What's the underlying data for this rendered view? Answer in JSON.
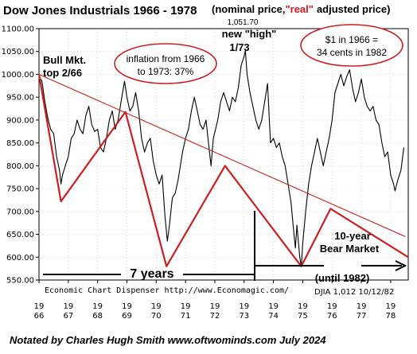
{
  "chart_data": {
    "type": "line",
    "title": "Dow Jones Industrials 1966 - 1978",
    "subtitle_part1": "(nominal price,",
    "subtitle_part2": "\"real\"",
    "subtitle_part3": "adjusted price)",
    "ylim": [
      550,
      1100
    ],
    "y_ticks": [
      550,
      600,
      650,
      700,
      750,
      800,
      850,
      900,
      950,
      1000,
      1050,
      1100
    ],
    "y_tick_labels": [
      "550.00",
      "600.00",
      "650.00",
      "700.00",
      "750.00",
      "800.00",
      "850.00",
      "900.00",
      "950.00",
      "1000.00",
      "1050.00",
      "1100.00"
    ],
    "x_range": [
      1966,
      1978.6
    ],
    "x_ticks": [
      {
        "year": 1966,
        "top": "19",
        "bottom": "66"
      },
      {
        "year": 1967,
        "top": "19",
        "bottom": "67"
      },
      {
        "year": 1968,
        "top": "19",
        "bottom": "68"
      },
      {
        "year": 1969,
        "top": "19",
        "bottom": "69"
      },
      {
        "year": 1970,
        "top": "19",
        "bottom": "70"
      },
      {
        "year": 1971,
        "top": "19",
        "bottom": "71"
      },
      {
        "year": 1972,
        "top": "19",
        "bottom": "72"
      },
      {
        "year": 1973,
        "top": "19",
        "bottom": "73"
      },
      {
        "year": 1974,
        "top": "19",
        "bottom": "74"
      },
      {
        "year": 1975,
        "top": "19",
        "bottom": "75"
      },
      {
        "year": 1976,
        "top": "19",
        "bottom": "76"
      },
      {
        "year": 1977,
        "top": "19",
        "bottom": "77"
      },
      {
        "year": 1978,
        "top": "19",
        "bottom": "78"
      }
    ],
    "grid": true,
    "series": [
      {
        "color": "#000000",
        "points": [
          [
            1966.0,
            995
          ],
          [
            1966.1,
            985
          ],
          [
            1966.2,
            940
          ],
          [
            1966.3,
            905
          ],
          [
            1966.4,
            880
          ],
          [
            1966.5,
            870
          ],
          [
            1966.6,
            820
          ],
          [
            1966.7,
            790
          ],
          [
            1966.75,
            760
          ],
          [
            1966.8,
            780
          ],
          [
            1966.9,
            800
          ],
          [
            1967.0,
            820
          ],
          [
            1967.1,
            860
          ],
          [
            1967.2,
            870
          ],
          [
            1967.3,
            900
          ],
          [
            1967.4,
            880
          ],
          [
            1967.5,
            870
          ],
          [
            1967.6,
            910
          ],
          [
            1967.7,
            930
          ],
          [
            1967.8,
            890
          ],
          [
            1967.9,
            875
          ],
          [
            1968.0,
            880
          ],
          [
            1968.1,
            840
          ],
          [
            1968.2,
            830
          ],
          [
            1968.3,
            860
          ],
          [
            1968.4,
            900
          ],
          [
            1968.5,
            920
          ],
          [
            1968.6,
            880
          ],
          [
            1968.7,
            900
          ],
          [
            1968.8,
            940
          ],
          [
            1968.92,
            985
          ],
          [
            1969.0,
            950
          ],
          [
            1969.1,
            920
          ],
          [
            1969.2,
            930
          ],
          [
            1969.3,
            960
          ],
          [
            1969.4,
            920
          ],
          [
            1969.5,
            860
          ],
          [
            1969.6,
            830
          ],
          [
            1969.7,
            850
          ],
          [
            1969.8,
            860
          ],
          [
            1969.9,
            810
          ],
          [
            1970.0,
            780
          ],
          [
            1970.1,
            760
          ],
          [
            1970.2,
            780
          ],
          [
            1970.3,
            690
          ],
          [
            1970.38,
            635
          ],
          [
            1970.45,
            670
          ],
          [
            1970.55,
            730
          ],
          [
            1970.65,
            740
          ],
          [
            1970.75,
            770
          ],
          [
            1970.9,
            830
          ],
          [
            1971.0,
            860
          ],
          [
            1971.1,
            880
          ],
          [
            1971.2,
            920
          ],
          [
            1971.3,
            950
          ],
          [
            1971.4,
            920
          ],
          [
            1971.5,
            890
          ],
          [
            1971.6,
            880
          ],
          [
            1971.7,
            900
          ],
          [
            1971.8,
            840
          ],
          [
            1971.87,
            800
          ],
          [
            1971.95,
            860
          ],
          [
            1972.1,
            900
          ],
          [
            1972.2,
            940
          ],
          [
            1972.3,
            960
          ],
          [
            1972.4,
            940
          ],
          [
            1972.5,
            920
          ],
          [
            1972.6,
            950
          ],
          [
            1972.7,
            940
          ],
          [
            1972.8,
            970
          ],
          [
            1972.9,
            1020
          ],
          [
            1973.0,
            1040
          ],
          [
            1973.04,
            1051.7
          ],
          [
            1973.1,
            1000
          ],
          [
            1973.2,
            960
          ],
          [
            1973.3,
            930
          ],
          [
            1973.4,
            900
          ],
          [
            1973.5,
            880
          ],
          [
            1973.6,
            900
          ],
          [
            1973.7,
            940
          ],
          [
            1973.8,
            980
          ],
          [
            1973.9,
            850
          ],
          [
            1974.0,
            860
          ],
          [
            1974.1,
            840
          ],
          [
            1974.2,
            850
          ],
          [
            1974.3,
            820
          ],
          [
            1974.4,
            800
          ],
          [
            1974.5,
            760
          ],
          [
            1974.6,
            720
          ],
          [
            1974.7,
            650
          ],
          [
            1974.75,
            620
          ],
          [
            1974.8,
            670
          ],
          [
            1974.9,
            600
          ],
          [
            1974.95,
            580
          ],
          [
            1975.0,
            630
          ],
          [
            1975.1,
            700
          ],
          [
            1975.2,
            760
          ],
          [
            1975.3,
            800
          ],
          [
            1975.4,
            830
          ],
          [
            1975.5,
            860
          ],
          [
            1975.6,
            830
          ],
          [
            1975.7,
            800
          ],
          [
            1975.8,
            830
          ],
          [
            1975.9,
            860
          ],
          [
            1976.0,
            900
          ],
          [
            1976.1,
            960
          ],
          [
            1976.2,
            980
          ],
          [
            1976.3,
            1000
          ],
          [
            1976.4,
            975
          ],
          [
            1976.5,
            995
          ],
          [
            1976.6,
            1010
          ],
          [
            1976.7,
            970
          ],
          [
            1976.8,
            940
          ],
          [
            1976.9,
            960
          ],
          [
            1977.0,
            990
          ],
          [
            1977.1,
            950
          ],
          [
            1977.2,
            930
          ],
          [
            1977.3,
            920
          ],
          [
            1977.4,
            930
          ],
          [
            1977.5,
            900
          ],
          [
            1977.6,
            890
          ],
          [
            1977.7,
            850
          ],
          [
            1977.8,
            820
          ],
          [
            1977.9,
            830
          ],
          [
            1978.0,
            780
          ],
          [
            1978.1,
            760
          ],
          [
            1978.15,
            745
          ],
          [
            1978.25,
            770
          ],
          [
            1978.35,
            790
          ],
          [
            1978.45,
            840
          ]
        ]
      }
    ],
    "overlays": [
      {
        "name": "zigzag",
        "color": "#cc1f1f",
        "points": [
          [
            1966.0,
            1000
          ],
          [
            1966.75,
            722
          ],
          [
            1968.95,
            918
          ],
          [
            1970.35,
            580
          ],
          [
            1972.35,
            800
          ],
          [
            1974.95,
            580
          ],
          [
            1975.95,
            706
          ],
          [
            1978.6,
            600
          ]
        ]
      },
      {
        "name": "trendline",
        "color": "#cc1f1f",
        "points": [
          [
            1966.0,
            1000
          ],
          [
            1978.5,
            645
          ]
        ]
      }
    ],
    "annotations": {
      "high_value": "1,051.70",
      "high_label_1": "new \"high\"",
      "high_label_2": "1/73",
      "bull_1": "Bull Mkt.",
      "bull_2": "top 2/66",
      "inflation_1": "inflation from 1966",
      "inflation_2": "to 1973: 37%",
      "dollar_1": "$1 in 1966 =",
      "dollar_2": "34 cents in 1982",
      "seven_years": "7 years",
      "bear_1": "10-year",
      "bear_2": "Bear Market",
      "bear_3": "(until 1982)",
      "source": "Economic Chart Dispenser  http://www.Economagic.com/",
      "djia": "DJIA 1,012  10/12/82",
      "credit": "Notated by Charles Hugh Smith   www.oftwominds.com   July 2024"
    }
  }
}
